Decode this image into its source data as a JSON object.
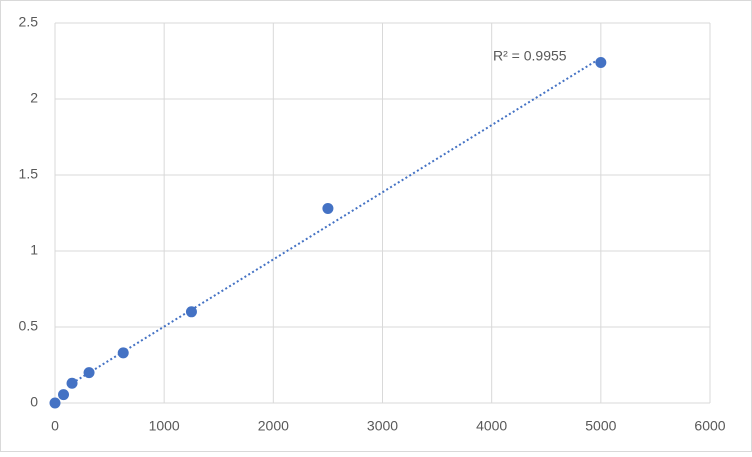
{
  "chart_data": {
    "type": "scatter",
    "series": [
      {
        "color": "#4472c4",
        "x": [
          0,
          78,
          156,
          312,
          625,
          1250,
          2500,
          5000
        ],
        "values": [
          0,
          0.055,
          0.13,
          0.2,
          0.33,
          0.6,
          1.28,
          2.24
        ]
      }
    ],
    "trendline": {
      "x": [
        156,
        5000
      ],
      "values": [
        0.13,
        2.27
      ],
      "color": "#4472c4",
      "label": "R² = 0.9955"
    },
    "xlim": [
      0,
      6000
    ],
    "xticks": [
      0,
      1000,
      2000,
      3000,
      4000,
      5000,
      6000
    ],
    "ylim": [
      0,
      2.5
    ],
    "yticks": [
      0,
      0.5,
      1,
      1.5,
      2,
      2.5
    ],
    "grid": true
  }
}
